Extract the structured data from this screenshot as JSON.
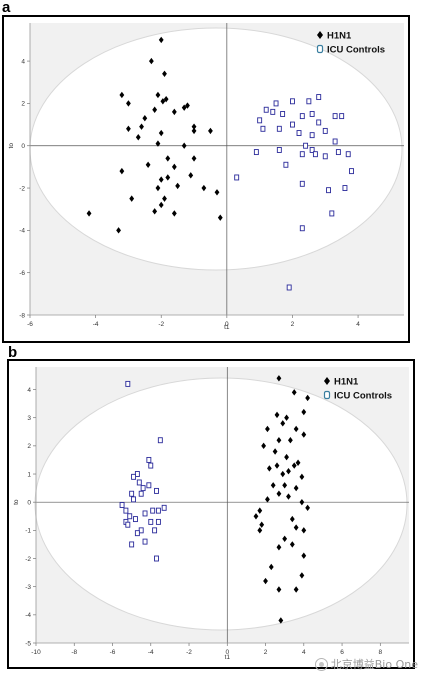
{
  "panels": [
    {
      "letter": "a"
    },
    {
      "letter": "b"
    }
  ],
  "watermark": {
    "text": "北京博益Bio One",
    "icon": "wechat-icon"
  },
  "colors": {
    "h1n1": "#000000",
    "controls": "#2a2a9a",
    "ellipse_fill": "#ffffff",
    "plot_bg": "#f1f1f1",
    "axis": "#555555"
  },
  "chart_data": [
    {
      "type": "scatter",
      "title": "",
      "xlabel": "t1",
      "ylabel": "to",
      "xlim": [
        -6,
        5.4
      ],
      "ylim": [
        -8,
        5.8
      ],
      "xticks": [
        -6,
        -4,
        -2,
        0,
        2,
        4
      ],
      "yticks": [
        -8,
        -6,
        -4,
        -2,
        0,
        2,
        4
      ],
      "legend_position": "top-right",
      "series": [
        {
          "name": "H1N1",
          "marker": "diamond",
          "points": [
            [
              -2.0,
              5.0
            ],
            [
              -2.3,
              4.0
            ],
            [
              -1.9,
              3.4
            ],
            [
              -3.2,
              2.4
            ],
            [
              -2.1,
              2.4
            ],
            [
              -3.0,
              2.0
            ],
            [
              -1.95,
              2.1
            ],
            [
              -1.85,
              2.2
            ],
            [
              -1.3,
              1.8
            ],
            [
              -1.2,
              1.9
            ],
            [
              -2.2,
              1.7
            ],
            [
              -2.5,
              1.3
            ],
            [
              -1.6,
              1.6
            ],
            [
              -3.0,
              0.8
            ],
            [
              -2.6,
              0.9
            ],
            [
              -2.0,
              0.6
            ],
            [
              -1.0,
              0.7
            ],
            [
              -0.5,
              0.7
            ],
            [
              -1.0,
              0.9
            ],
            [
              -2.7,
              0.4
            ],
            [
              -2.1,
              0.1
            ],
            [
              -1.3,
              0.0
            ],
            [
              -1.8,
              -0.6
            ],
            [
              -1.0,
              -0.6
            ],
            [
              -2.4,
              -0.9
            ],
            [
              -3.2,
              -1.2
            ],
            [
              -1.6,
              -1.0
            ],
            [
              -1.8,
              -1.5
            ],
            [
              -2.0,
              -1.6
            ],
            [
              -1.1,
              -1.4
            ],
            [
              -0.7,
              -2.0
            ],
            [
              -2.1,
              -2.0
            ],
            [
              -2.9,
              -2.5
            ],
            [
              -1.9,
              -2.5
            ],
            [
              -2.0,
              -2.8
            ],
            [
              -1.6,
              -3.2
            ],
            [
              -2.2,
              -3.1
            ],
            [
              -0.3,
              -2.2
            ],
            [
              -0.2,
              -3.4
            ],
            [
              -4.2,
              -3.2
            ],
            [
              -3.3,
              -4.0
            ],
            [
              -1.5,
              -1.9
            ]
          ]
        },
        {
          "name": "ICU Controls",
          "marker": "open-square",
          "points": [
            [
              1.5,
              2.0
            ],
            [
              2.0,
              2.1
            ],
            [
              2.5,
              2.1
            ],
            [
              2.8,
              2.3
            ],
            [
              1.2,
              1.7
            ],
            [
              1.4,
              1.6
            ],
            [
              1.7,
              1.5
            ],
            [
              2.3,
              1.4
            ],
            [
              2.6,
              1.5
            ],
            [
              3.3,
              1.4
            ],
            [
              3.5,
              1.4
            ],
            [
              1.0,
              1.2
            ],
            [
              2.0,
              1.0
            ],
            [
              2.8,
              1.1
            ],
            [
              1.1,
              0.8
            ],
            [
              1.6,
              0.8
            ],
            [
              2.2,
              0.6
            ],
            [
              2.6,
              0.5
            ],
            [
              3.0,
              0.7
            ],
            [
              3.3,
              0.2
            ],
            [
              2.4,
              0.0
            ],
            [
              1.6,
              -0.2
            ],
            [
              2.6,
              -0.2
            ],
            [
              3.4,
              -0.3
            ],
            [
              0.9,
              -0.3
            ],
            [
              2.7,
              -0.4
            ],
            [
              2.3,
              -0.4
            ],
            [
              1.8,
              -0.9
            ],
            [
              3.0,
              -0.5
            ],
            [
              3.7,
              -0.4
            ],
            [
              0.3,
              -1.5
            ],
            [
              3.8,
              -1.2
            ],
            [
              2.3,
              -1.8
            ],
            [
              3.1,
              -2.1
            ],
            [
              3.6,
              -2.0
            ],
            [
              3.2,
              -3.2
            ],
            [
              2.3,
              -3.9
            ],
            [
              1.9,
              -6.7
            ]
          ]
        }
      ]
    },
    {
      "type": "scatter",
      "title": "",
      "xlabel": "t1",
      "ylabel": "to",
      "xlim": [
        -10,
        9.5
      ],
      "ylim": [
        -5,
        4.8
      ],
      "xticks": [
        -10,
        -8,
        -6,
        -4,
        -2,
        0,
        2,
        4,
        6,
        8
      ],
      "yticks": [
        -5,
        -4,
        -3,
        -2,
        -1,
        0,
        1,
        2,
        3,
        4
      ],
      "legend_position": "top-right",
      "series": [
        {
          "name": "H1N1",
          "marker": "diamond",
          "points": [
            [
              2.7,
              4.4
            ],
            [
              3.5,
              3.9
            ],
            [
              4.2,
              3.7
            ],
            [
              4.0,
              3.2
            ],
            [
              2.6,
              3.1
            ],
            [
              3.1,
              3.0
            ],
            [
              2.9,
              2.8
            ],
            [
              3.6,
              2.6
            ],
            [
              2.1,
              2.6
            ],
            [
              4.0,
              2.4
            ],
            [
              2.7,
              2.2
            ],
            [
              3.3,
              2.2
            ],
            [
              1.9,
              2.0
            ],
            [
              2.5,
              1.8
            ],
            [
              3.1,
              1.6
            ],
            [
              3.7,
              1.4
            ],
            [
              2.6,
              1.3
            ],
            [
              3.5,
              1.3
            ],
            [
              2.2,
              1.2
            ],
            [
              3.2,
              1.1
            ],
            [
              2.9,
              1.0
            ],
            [
              3.9,
              0.9
            ],
            [
              2.4,
              0.6
            ],
            [
              3.0,
              0.6
            ],
            [
              3.6,
              0.5
            ],
            [
              2.7,
              0.3
            ],
            [
              3.2,
              0.2
            ],
            [
              2.1,
              0.1
            ],
            [
              3.9,
              0.0
            ],
            [
              1.7,
              -0.3
            ],
            [
              4.2,
              -0.2
            ],
            [
              1.5,
              -0.5
            ],
            [
              3.4,
              -0.6
            ],
            [
              1.8,
              -0.8
            ],
            [
              3.6,
              -0.9
            ],
            [
              1.7,
              -1.0
            ],
            [
              4.0,
              -1.0
            ],
            [
              3.0,
              -1.3
            ],
            [
              3.4,
              -1.5
            ],
            [
              2.7,
              -1.6
            ],
            [
              4.0,
              -1.9
            ],
            [
              2.3,
              -2.3
            ],
            [
              3.9,
              -2.6
            ],
            [
              2.0,
              -2.8
            ],
            [
              2.7,
              -3.1
            ],
            [
              3.6,
              -3.1
            ],
            [
              2.8,
              -4.2
            ]
          ]
        },
        {
          "name": "ICU Controls",
          "marker": "open-square",
          "points": [
            [
              -5.2,
              4.2
            ],
            [
              -3.5,
              2.2
            ],
            [
              -4.1,
              1.5
            ],
            [
              -4.0,
              1.3
            ],
            [
              -4.7,
              1.0
            ],
            [
              -4.9,
              0.9
            ],
            [
              -4.6,
              0.7
            ],
            [
              -4.1,
              0.6
            ],
            [
              -4.4,
              0.5
            ],
            [
              -3.7,
              0.4
            ],
            [
              -5.0,
              0.3
            ],
            [
              -4.5,
              0.3
            ],
            [
              -4.9,
              0.1
            ],
            [
              -3.3,
              -0.2
            ],
            [
              -5.3,
              -0.3
            ],
            [
              -3.9,
              -0.3
            ],
            [
              -3.6,
              -0.3
            ],
            [
              -4.3,
              -0.4
            ],
            [
              -5.1,
              -0.5
            ],
            [
              -4.8,
              -0.6
            ],
            [
              -5.3,
              -0.7
            ],
            [
              -4.0,
              -0.7
            ],
            [
              -3.6,
              -0.7
            ],
            [
              -5.2,
              -0.8
            ],
            [
              -4.5,
              -1.0
            ],
            [
              -4.7,
              -1.1
            ],
            [
              -3.8,
              -1.0
            ],
            [
              -5.0,
              -1.5
            ],
            [
              -4.3,
              -1.4
            ],
            [
              -5.5,
              -0.1
            ],
            [
              -3.7,
              -2.0
            ]
          ]
        }
      ]
    }
  ]
}
